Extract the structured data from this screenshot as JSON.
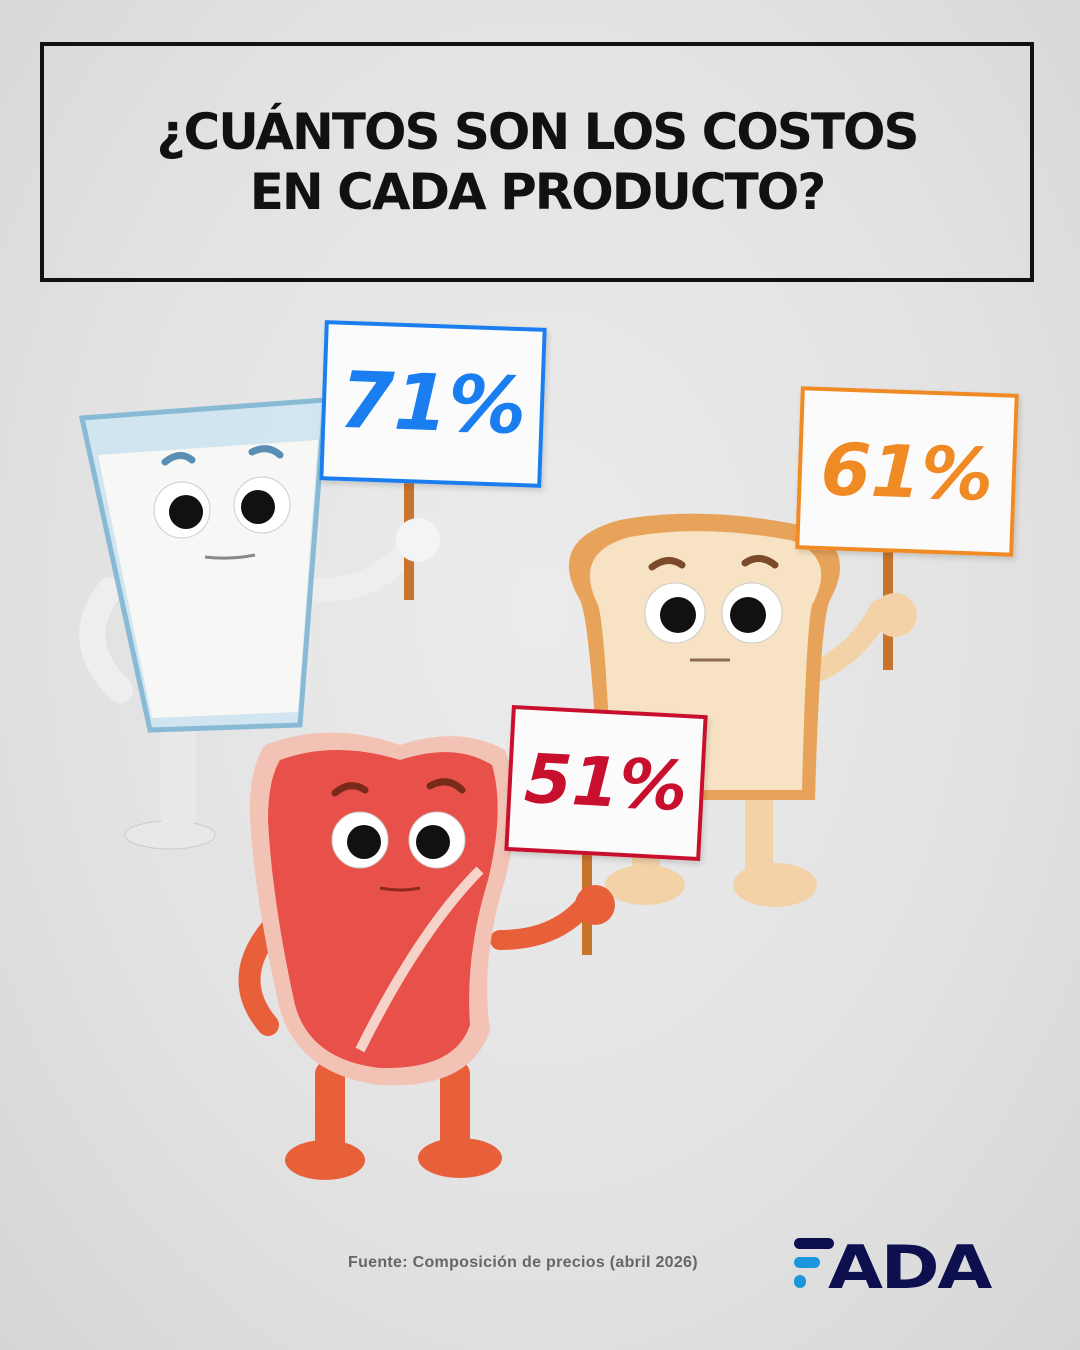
{
  "header": {
    "title_line1": "¿CUÁNTOS SON LOS COSTOS",
    "title_line2": "EN CADA PRODUCTO?"
  },
  "products": [
    {
      "character": "milk-glass",
      "sign_text": "71%",
      "value": 71,
      "color": "#1a7ef0"
    },
    {
      "character": "bread-slice",
      "sign_text": "61%",
      "value": 61,
      "color": "#f08a24"
    },
    {
      "character": "steak",
      "sign_text": "51%",
      "value": 51,
      "color": "#c8102e"
    }
  ],
  "footer": {
    "source": "Fuente: Composición de precios (abril 2026)",
    "logo_text": "FADA",
    "logo_colors": [
      "#0d0f4f",
      "#1b95dc"
    ]
  }
}
